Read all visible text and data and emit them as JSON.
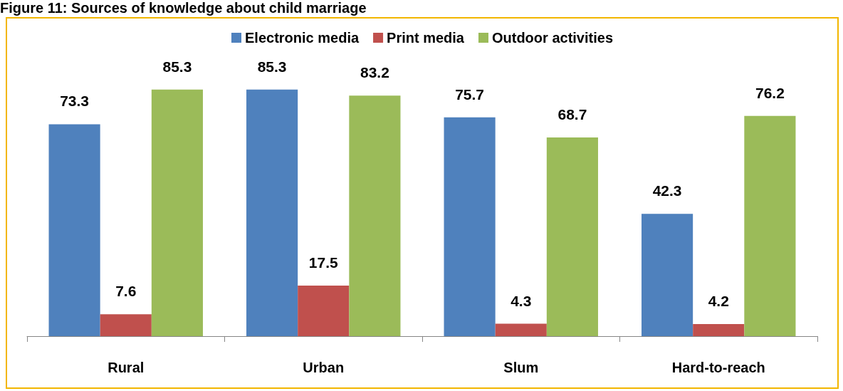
{
  "chart_data": {
    "type": "bar",
    "title": "Figure 11: Sources of knowledge about child marriage",
    "categories": [
      "Rural",
      "Urban",
      "Slum",
      "Hard-to-reach"
    ],
    "series": [
      {
        "name": "Electronic media",
        "color": "#4f81bd",
        "values": [
          73.3,
          85.3,
          75.7,
          42.3
        ]
      },
      {
        "name": "Print media",
        "color": "#c0504d",
        "values": [
          7.6,
          17.5,
          4.3,
          4.2
        ]
      },
      {
        "name": "Outdoor activities",
        "color": "#9bbb59",
        "values": [
          85.3,
          83.2,
          68.7,
          76.2
        ]
      }
    ],
    "data_labels": true,
    "legend": "top"
  }
}
